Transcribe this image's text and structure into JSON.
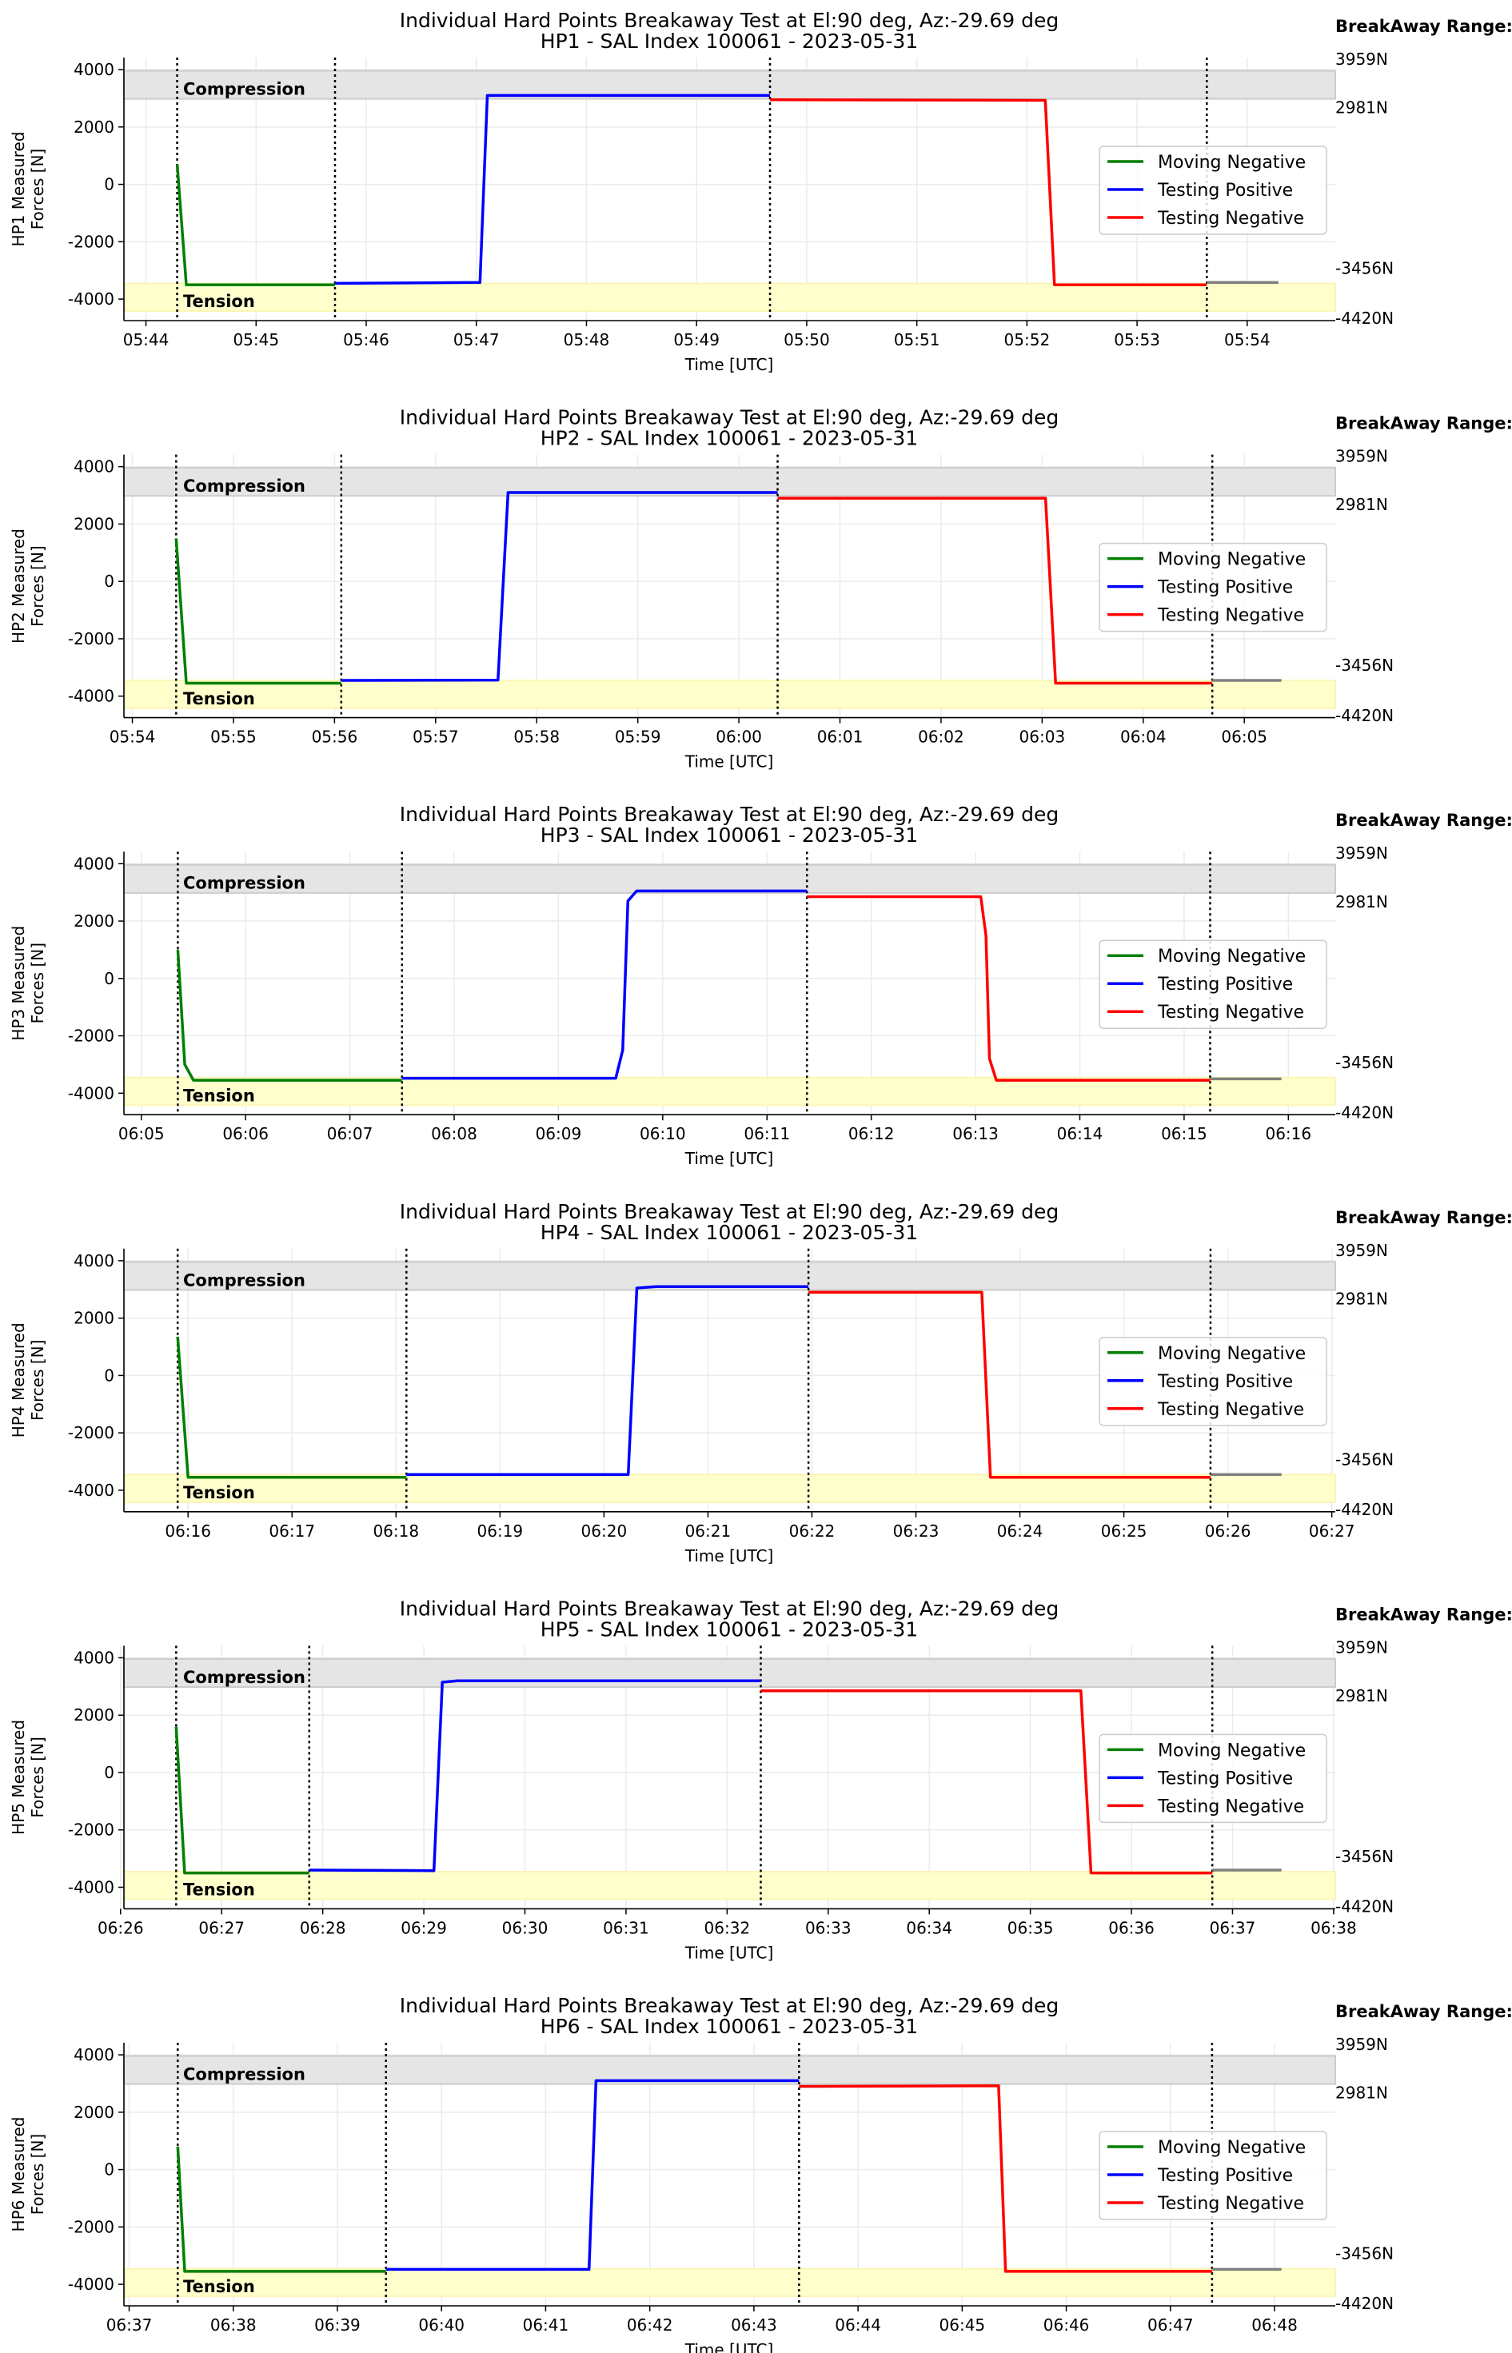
{
  "breakaway_label": "BreakAway Range:",
  "chart_data": [
    {
      "type": "line",
      "title": [
        "Individual Hard Points Breakaway Test at El:90 deg, Az:-29.69 deg",
        "HP1 - SAL Index 100061 - 2023-05-31"
      ],
      "ylabel": [
        "HP1 Measured",
        "Forces [N]"
      ],
      "xlabel": "Time [UTC]",
      "xlim": [
        "05:43:48",
        "05:54:48"
      ],
      "ylim": [
        -4750,
        4420
      ],
      "xticks": [
        "05:44",
        "05:45",
        "05:46",
        "05:47",
        "05:48",
        "05:49",
        "05:50",
        "05:51",
        "05:52",
        "05:53",
        "05:54"
      ],
      "vlines": [
        "05:44:17",
        "05:45:43",
        "05:49:40",
        "05:53:38"
      ],
      "series": [
        {
          "name": "Moving Negative",
          "color": "#008000",
          "points": [
            [
              "05:44:17",
              700
            ],
            [
              "05:44:22",
              -3500
            ],
            [
              "05:45:43",
              -3500
            ]
          ]
        },
        {
          "name": "Testing Positive",
          "color": "#0000ff",
          "points": [
            [
              "05:45:43",
              -3450
            ],
            [
              "05:47:02",
              -3420
            ],
            [
              "05:47:06",
              3100
            ],
            [
              "05:49:40",
              3100
            ]
          ]
        },
        {
          "name": "Testing Negative",
          "color": "#ff0000",
          "points": [
            [
              "05:49:40",
              2950
            ],
            [
              "05:52:10",
              2930
            ],
            [
              "05:52:15",
              -3500
            ],
            [
              "05:53:38",
              -3500
            ]
          ]
        },
        {
          "color": "#808080",
          "points": [
            [
              "05:53:38",
              -3420
            ],
            [
              "05:54:17",
              -3420
            ]
          ]
        }
      ]
    },
    {
      "type": "line",
      "title": [
        "Individual Hard Points Breakaway Test at El:90 deg, Az:-29.69 deg",
        "HP2 - SAL Index 100061 - 2023-05-31"
      ],
      "ylabel": [
        "HP2 Measured",
        "Forces [N]"
      ],
      "xlabel": "Time [UTC]",
      "xlim": [
        "05:53:55",
        "06:05:54"
      ],
      "ylim": [
        -4750,
        4420
      ],
      "xticks": [
        "05:54",
        "05:55",
        "05:56",
        "05:57",
        "05:58",
        "05:59",
        "06:00",
        "06:01",
        "06:02",
        "06:03",
        "06:04",
        "06:05"
      ],
      "vlines": [
        "05:54:26",
        "05:56:04",
        "06:00:23",
        "06:04:41"
      ],
      "series": [
        {
          "name": "Moving Negative",
          "color": "#008000",
          "points": [
            [
              "05:54:26",
              1500
            ],
            [
              "05:54:32",
              -3550
            ],
            [
              "05:56:04",
              -3550
            ]
          ]
        },
        {
          "name": "Testing Positive",
          "color": "#0000ff",
          "points": [
            [
              "05:56:04",
              -3450
            ],
            [
              "05:57:37",
              -3440
            ],
            [
              "05:57:43",
              3100
            ],
            [
              "06:00:23",
              3100
            ]
          ]
        },
        {
          "name": "Testing Negative",
          "color": "#ff0000",
          "points": [
            [
              "06:00:23",
              2900
            ],
            [
              "06:03:02",
              2900
            ],
            [
              "06:03:08",
              -3550
            ],
            [
              "06:04:41",
              -3550
            ]
          ]
        },
        {
          "color": "#808080",
          "points": [
            [
              "06:04:41",
              -3450
            ],
            [
              "06:05:22",
              -3450
            ]
          ]
        }
      ]
    },
    {
      "type": "line",
      "title": [
        "Individual Hard Points Breakaway Test at El:90 deg, Az:-29.69 deg",
        "HP3 - SAL Index 100061 - 2023-05-31"
      ],
      "ylabel": [
        "HP3 Measured",
        "Forces [N]"
      ],
      "xlabel": "Time [UTC]",
      "xlim": [
        "06:04:50",
        "06:16:27"
      ],
      "ylim": [
        -4750,
        4420
      ],
      "xticks": [
        "06:05",
        "06:06",
        "06:07",
        "06:08",
        "06:09",
        "06:10",
        "06:11",
        "06:12",
        "06:13",
        "06:14",
        "06:15",
        "06:16"
      ],
      "vlines": [
        "06:05:21",
        "06:07:30",
        "06:11:23",
        "06:15:15"
      ],
      "series": [
        {
          "name": "Moving Negative",
          "color": "#008000",
          "points": [
            [
              "06:05:21",
              1000
            ],
            [
              "06:05:25",
              -3000
            ],
            [
              "06:05:30",
              -3550
            ],
            [
              "06:07:30",
              -3550
            ]
          ]
        },
        {
          "name": "Testing Positive",
          "color": "#0000ff",
          "points": [
            [
              "06:07:30",
              -3480
            ],
            [
              "06:09:33",
              -3480
            ],
            [
              "06:09:37",
              -2500
            ],
            [
              "06:09:40",
              2700
            ],
            [
              "06:09:45",
              3050
            ],
            [
              "06:11:23",
              3050
            ]
          ]
        },
        {
          "name": "Testing Negative",
          "color": "#ff0000",
          "points": [
            [
              "06:11:23",
              2850
            ],
            [
              "06:13:03",
              2850
            ],
            [
              "06:13:06",
              1500
            ],
            [
              "06:13:08",
              -2800
            ],
            [
              "06:13:12",
              -3550
            ],
            [
              "06:15:15",
              -3550
            ]
          ]
        },
        {
          "color": "#808080",
          "points": [
            [
              "06:15:15",
              -3500
            ],
            [
              "06:15:56",
              -3500
            ]
          ]
        }
      ]
    },
    {
      "type": "line",
      "title": [
        "Individual Hard Points Breakaway Test at El:90 deg, Az:-29.69 deg",
        "HP4 - SAL Index 100061 - 2023-05-31"
      ],
      "ylabel": [
        "HP4 Measured",
        "Forces [N]"
      ],
      "xlabel": "Time [UTC]",
      "xlim": [
        "06:15:23",
        "06:27:02"
      ],
      "ylim": [
        -4750,
        4420
      ],
      "xticks": [
        "06:16",
        "06:17",
        "06:18",
        "06:19",
        "06:20",
        "06:21",
        "06:22",
        "06:23",
        "06:24",
        "06:25",
        "06:26",
        "06:27"
      ],
      "vlines": [
        "06:15:54",
        "06:18:06",
        "06:21:58",
        "06:25:50"
      ],
      "series": [
        {
          "name": "Moving Negative",
          "color": "#008000",
          "points": [
            [
              "06:15:54",
              1350
            ],
            [
              "06:16:00",
              -3550
            ],
            [
              "06:18:06",
              -3550
            ]
          ]
        },
        {
          "name": "Testing Positive",
          "color": "#0000ff",
          "points": [
            [
              "06:18:06",
              -3450
            ],
            [
              "06:20:14",
              -3450
            ],
            [
              "06:20:19",
              3050
            ],
            [
              "06:20:30",
              3100
            ],
            [
              "06:21:58",
              3100
            ]
          ]
        },
        {
          "name": "Testing Negative",
          "color": "#ff0000",
          "points": [
            [
              "06:21:58",
              2900
            ],
            [
              "06:23:38",
              2900
            ],
            [
              "06:23:43",
              -3550
            ],
            [
              "06:25:50",
              -3550
            ]
          ]
        },
        {
          "color": "#808080",
          "points": [
            [
              "06:25:50",
              -3450
            ],
            [
              "06:26:31",
              -3450
            ]
          ]
        }
      ]
    },
    {
      "type": "line",
      "title": [
        "Individual Hard Points Breakaway Test at El:90 deg, Az:-29.69 deg",
        "HP5 - SAL Index 100061 - 2023-05-31"
      ],
      "ylabel": [
        "HP5 Measured",
        "Forces [N]"
      ],
      "xlabel": "Time [UTC]",
      "xlim": [
        "06:26:02",
        "06:38:01"
      ],
      "ylim": [
        -4750,
        4420
      ],
      "xticks": [
        "06:26",
        "06:27",
        "06:28",
        "06:29",
        "06:30",
        "06:31",
        "06:32",
        "06:33",
        "06:34",
        "06:35",
        "06:36",
        "06:37",
        "06:38"
      ],
      "vlines": [
        "06:26:33",
        "06:27:52",
        "06:32:20",
        "06:36:48"
      ],
      "series": [
        {
          "name": "Moving Negative",
          "color": "#008000",
          "points": [
            [
              "06:26:33",
              1600
            ],
            [
              "06:26:38",
              -3500
            ],
            [
              "06:27:52",
              -3500
            ]
          ]
        },
        {
          "name": "Testing Positive",
          "color": "#0000ff",
          "points": [
            [
              "06:27:52",
              -3400
            ],
            [
              "06:29:06",
              -3420
            ],
            [
              "06:29:11",
              3150
            ],
            [
              "06:29:20",
              3200
            ],
            [
              "06:32:20",
              3200
            ]
          ]
        },
        {
          "name": "Testing Negative",
          "color": "#ff0000",
          "points": [
            [
              "06:32:20",
              2850
            ],
            [
              "06:35:30",
              2850
            ],
            [
              "06:35:36",
              -3500
            ],
            [
              "06:36:48",
              -3500
            ]
          ]
        },
        {
          "color": "#808080",
          "points": [
            [
              "06:36:48",
              -3400
            ],
            [
              "06:37:29",
              -3400
            ]
          ]
        }
      ]
    },
    {
      "type": "line",
      "title": [
        "Individual Hard Points Breakaway Test at El:90 deg, Az:-29.69 deg",
        "HP6 - SAL Index 100061 - 2023-05-31"
      ],
      "ylabel": [
        "HP6 Measured",
        "Forces [N]"
      ],
      "xlabel": "Time [UTC]",
      "xlim": [
        "06:36:57",
        "06:48:35"
      ],
      "ylim": [
        -4750,
        4420
      ],
      "xticks": [
        "06:37",
        "06:38",
        "06:39",
        "06:40",
        "06:41",
        "06:42",
        "06:43",
        "06:44",
        "06:45",
        "06:46",
        "06:47",
        "06:48"
      ],
      "vlines": [
        "06:37:28",
        "06:39:28",
        "06:43:26",
        "06:47:24"
      ],
      "series": [
        {
          "name": "Moving Negative",
          "color": "#008000",
          "points": [
            [
              "06:37:28",
              800
            ],
            [
              "06:37:32",
              -3550
            ],
            [
              "06:39:28",
              -3550
            ]
          ]
        },
        {
          "name": "Testing Positive",
          "color": "#0000ff",
          "points": [
            [
              "06:39:28",
              -3480
            ],
            [
              "06:41:25",
              -3480
            ],
            [
              "06:41:29",
              3100
            ],
            [
              "06:43:26",
              3100
            ]
          ]
        },
        {
          "name": "Testing Negative",
          "color": "#ff0000",
          "points": [
            [
              "06:43:26",
              2900
            ],
            [
              "06:45:21",
              2920
            ],
            [
              "06:45:25",
              -3550
            ],
            [
              "06:47:24",
              -3550
            ]
          ]
        },
        {
          "color": "#808080",
          "points": [
            [
              "06:47:24",
              -3480
            ],
            [
              "06:48:04",
              -3480
            ]
          ]
        }
      ]
    }
  ],
  "bands": {
    "compression": {
      "label": "Compression",
      "min": 2981,
      "max": 3959,
      "color": "#e5e5e5"
    },
    "tension": {
      "label": "Tension",
      "min": -4420,
      "max": -3456,
      "color": "#ffffcc"
    }
  },
  "range_labels": [
    "3959N",
    "2981N",
    "-3456N",
    "-4420N"
  ],
  "yticks": [
    -4000,
    -2000,
    0,
    2000,
    4000
  ]
}
